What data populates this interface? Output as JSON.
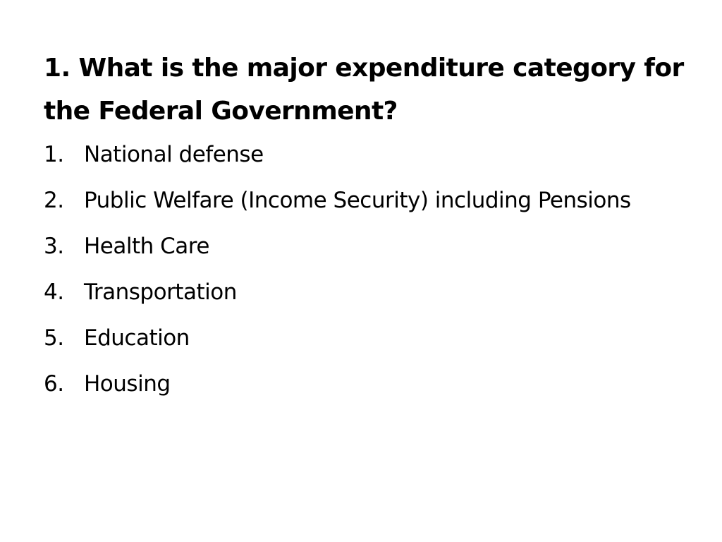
{
  "question": "1. What is the major expenditure category for the Federal Government?",
  "options": [
    {
      "number": "1.",
      "text": "National defense"
    },
    {
      "number": "2.",
      "text": "Public Welfare (Income Security) including Pensions"
    },
    {
      "number": "3.",
      "text": "Health Care"
    },
    {
      "number": "4.",
      "text": "Transportation"
    },
    {
      "number": "5.",
      "text": "Education"
    },
    {
      "number": "6.",
      "text": "Housing"
    }
  ]
}
